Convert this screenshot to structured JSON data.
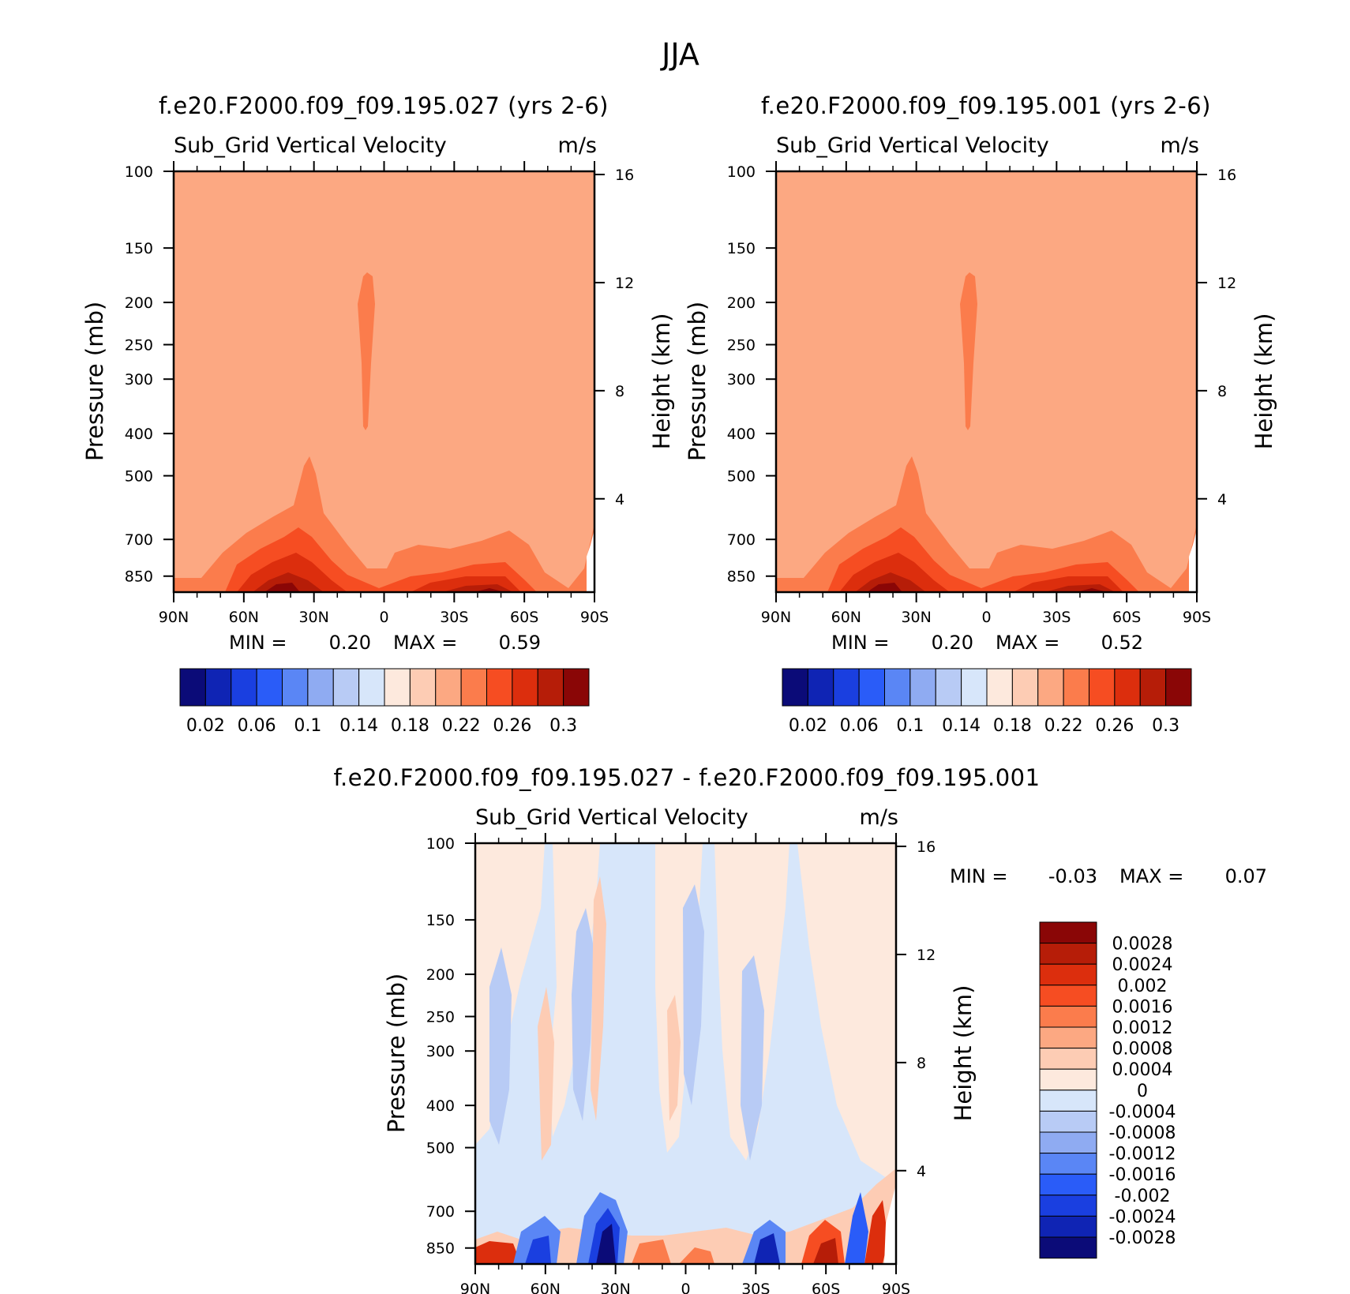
{
  "page": {
    "title": "JJA"
  },
  "panels": [
    {
      "id": "panel-case1",
      "title": "f.e20.F2000.f09_f09.195.027 (yrs 2-6)",
      "variable": "Sub_Grid Vertical Velocity",
      "units": "m/s",
      "ylabel": "Pressure (mb)",
      "ylabel_right": "Height (km)",
      "min_label": "MIN =",
      "min_value": "0.20",
      "max_label": "MAX =",
      "max_value": "0.59"
    },
    {
      "id": "panel-case2",
      "title": "f.e20.F2000.f09_f09.195.001 (yrs 2-6)",
      "variable": "Sub_Grid Vertical Velocity",
      "units": "m/s",
      "ylabel": "Pressure (mb)",
      "ylabel_right": "Height (km)",
      "min_label": "MIN =",
      "min_value": "0.20",
      "max_label": "MAX =",
      "max_value": "0.52"
    },
    {
      "id": "panel-diff",
      "title": "f.e20.F2000.f09_f09.195.027 - f.e20.F2000.f09_f09.195.001",
      "variable": "Sub_Grid Vertical Velocity",
      "units": "m/s",
      "ylabel": "Pressure (mb)",
      "ylabel_right": "Height (km)",
      "min_label": "MIN =",
      "min_value": "-0.03",
      "max_label": "MAX =",
      "max_value": "0.07"
    }
  ],
  "chart_data": {
    "type": "heatmap",
    "x_ticks": [
      "90N",
      "60N",
      "30N",
      "0",
      "30S",
      "60S",
      "90S"
    ],
    "x_values": [
      90,
      60,
      30,
      0,
      -30,
      -60,
      -90
    ],
    "y_ticks": [
      100,
      150,
      200,
      250,
      300,
      400,
      500,
      700,
      850
    ],
    "y_scale": "log",
    "y_range": [
      100,
      925
    ],
    "height_ticks": [
      4,
      8,
      12,
      16
    ],
    "case_colorbar": {
      "colors": [
        "#0b0b78",
        "#0f24b4",
        "#1a3fe0",
        "#2a5cf8",
        "#5a86f5",
        "#8fabf2",
        "#b8cbf5",
        "#d7e6fa",
        "#fde9dd",
        "#fdccb4",
        "#fca882",
        "#fb7c4c",
        "#f64d22",
        "#dc2e0d",
        "#b61d08",
        "#8a0606"
      ],
      "labels": [
        "0.02",
        "0.06",
        "0.1",
        "0.14",
        "0.18",
        "0.22",
        "0.26",
        "0.3"
      ]
    },
    "diff_colorbar": {
      "colors": [
        "#8a0606",
        "#b61d08",
        "#dc2e0d",
        "#f64d22",
        "#fb7c4c",
        "#fca882",
        "#fdccb4",
        "#fde9dd",
        "#d7e6fa",
        "#b8cbf5",
        "#8fabf2",
        "#5a86f5",
        "#2a5cf8",
        "#1a3fe0",
        "#0f24b4",
        "#0b0b78"
      ],
      "labels": [
        "0.0028",
        "0.0024",
        "0.002",
        "0.0016",
        "0.0012",
        "0.0008",
        "0.0004",
        "0",
        "-0.0004",
        "-0.0008",
        "-0.0012",
        "-0.0016",
        "-0.002",
        "-0.0024",
        "-0.0028"
      ]
    }
  }
}
